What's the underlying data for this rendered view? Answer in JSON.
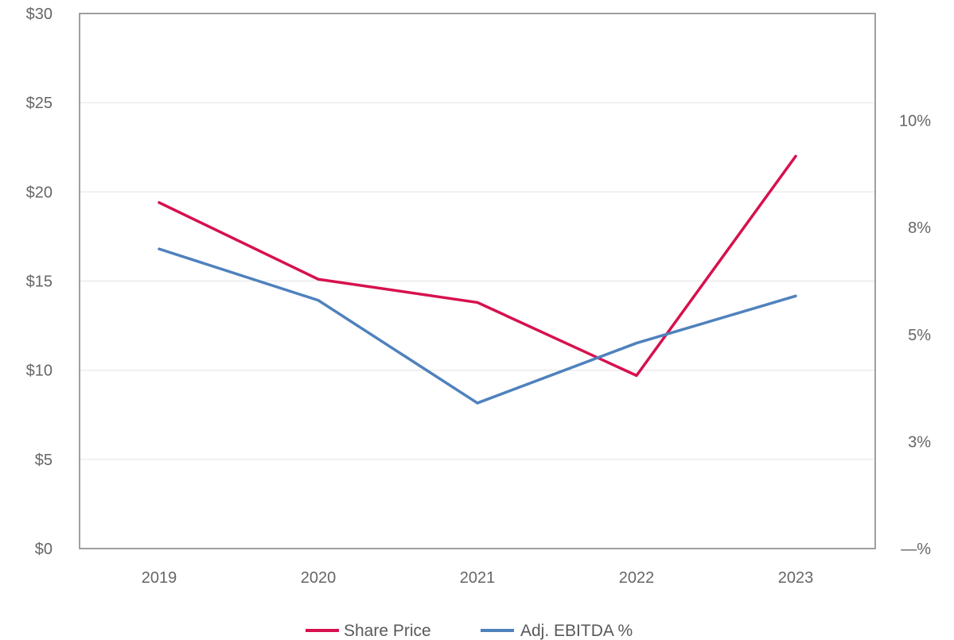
{
  "chart_data": {
    "type": "line",
    "categories": [
      "2019",
      "2020",
      "2021",
      "2022",
      "2023"
    ],
    "series": [
      {
        "name": "Share Price",
        "axis": "left",
        "color": "#d7114d",
        "values": [
          19.4,
          15.1,
          13.8,
          9.7,
          22.0
        ]
      },
      {
        "name": "Adj. EBITDA %",
        "axis": "right",
        "color": "#4f81bd",
        "values": [
          7.0,
          5.8,
          3.4,
          4.8,
          5.9
        ]
      }
    ],
    "y_left": {
      "ylim": [
        0,
        30
      ],
      "ticks": [
        0,
        5,
        10,
        15,
        20,
        25,
        30
      ],
      "tick_labels": [
        "$0",
        "$5",
        "$10",
        "$15",
        "$20",
        "$25",
        "$30"
      ]
    },
    "y_right": {
      "ylim": [
        0,
        12.5
      ],
      "ticks": [
        0,
        2.5,
        5,
        7.5,
        10
      ],
      "tick_labels": [
        "—%",
        "3%",
        "5%",
        "8%",
        "10%"
      ]
    },
    "grid": true,
    "legend": "bottom-center"
  }
}
